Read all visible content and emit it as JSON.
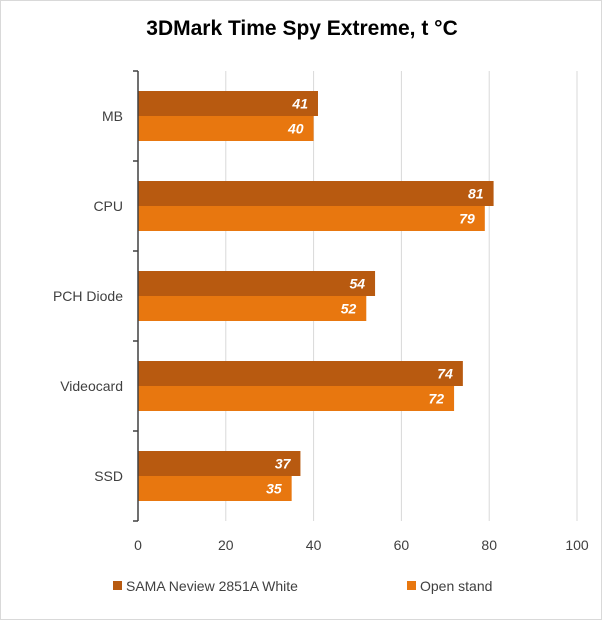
{
  "chart_data": {
    "type": "bar",
    "orientation": "horizontal",
    "title": "3DMark Time Spy Extreme, t °C",
    "categories": [
      "MB",
      "CPU",
      "PCH Diode",
      "Videocard",
      "SSD"
    ],
    "series": [
      {
        "name": "SAMA Neview 2851A White",
        "values": [
          41,
          81,
          54,
          74,
          37
        ],
        "color": "#b85a10"
      },
      {
        "name": "Open stand",
        "values": [
          40,
          79,
          52,
          72,
          35
        ],
        "color": "#e8770f"
      }
    ],
    "xlim": [
      0,
      100
    ],
    "xticks": [
      0,
      20,
      40,
      60,
      80,
      100
    ],
    "xlabel": "",
    "ylabel": "",
    "grid": "vertical",
    "legend_position": "bottom",
    "data_labels": true
  }
}
